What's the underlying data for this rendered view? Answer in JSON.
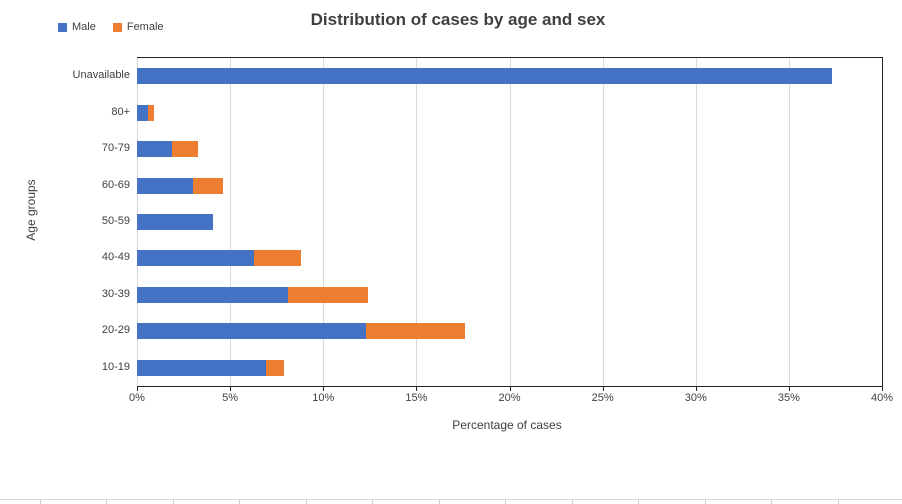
{
  "chart_data": {
    "type": "bar",
    "orientation": "horizontal",
    "stacked": true,
    "title": "Distribution of cases by age and sex",
    "xlabel": "Percentage of cases",
    "ylabel": "Age groups",
    "categories": [
      "Unavailable",
      "80+",
      "70-79",
      "60-69",
      "50-59",
      "40-49",
      "30-39",
      "20-29",
      "10-19"
    ],
    "series": [
      {
        "name": "Male",
        "color": "#4472C4",
        "values": [
          37.3,
          0.6,
          1.9,
          3.0,
          4.1,
          6.3,
          8.1,
          12.3,
          6.9
        ]
      },
      {
        "name": "Female",
        "color": "#ED7D31",
        "values": [
          0,
          0.3,
          1.4,
          1.6,
          0,
          2.5,
          4.3,
          5.3,
          1.0
        ]
      }
    ],
    "xlim": [
      0,
      40
    ],
    "x_tick_step": 5,
    "x_ticks": [
      "0%",
      "5%",
      "10%",
      "15%",
      "20%",
      "25%",
      "30%",
      "35%",
      "40%"
    ],
    "grid": true,
    "legend_position": "top-left",
    "colors": {
      "axis": "#262626",
      "gridline": "#D9D9D9",
      "text": "#404040"
    }
  }
}
